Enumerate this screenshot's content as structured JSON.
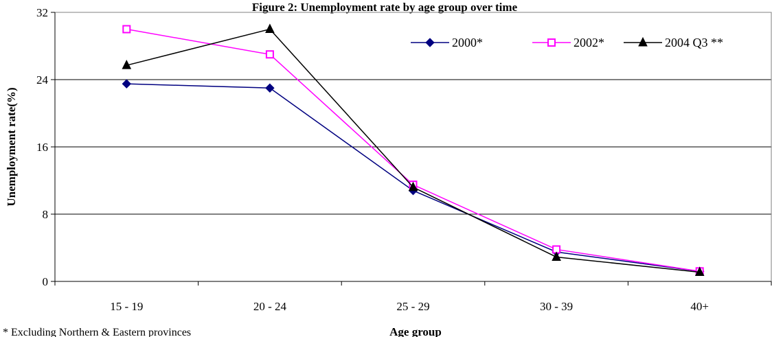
{
  "chart_data": {
    "type": "line",
    "title": "Figure 2: Unemployment rate by age group over time",
    "xlabel": "Age group",
    "ylabel": "Unemployment rate(%)",
    "categories": [
      "15 - 19",
      "20 - 24",
      "25 - 29",
      "30 - 39",
      "40+"
    ],
    "ylim": [
      0,
      32
    ],
    "yticks": [
      "0",
      "8",
      "16",
      "24",
      "32"
    ],
    "grid": true,
    "legend_position": "top-right",
    "series": [
      {
        "name": "2000*",
        "values": [
          23.5,
          23.0,
          10.8,
          3.5,
          1.2
        ],
        "color": "#000080",
        "marker": "diamond"
      },
      {
        "name": "2002*",
        "values": [
          30.0,
          27.0,
          11.5,
          3.8,
          1.2
        ],
        "color": "#ff00ff",
        "marker": "square"
      },
      {
        "name": "2004 Q3 **",
        "values": [
          25.7,
          30.0,
          11.2,
          2.9,
          1.1
        ],
        "color": "#000000",
        "marker": "triangle"
      }
    ]
  },
  "footnote": "*  Excluding Northern & Eastern  provinces"
}
